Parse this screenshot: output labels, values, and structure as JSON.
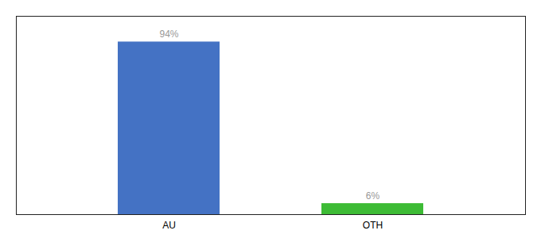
{
  "chart_data": {
    "type": "bar",
    "categories": [
      "AU",
      "OTH"
    ],
    "values": [
      94,
      6
    ],
    "value_labels": [
      "94%",
      "6%"
    ],
    "colors": [
      "#4472c4",
      "#3dbb35"
    ],
    "ylim": [
      0,
      108
    ],
    "tick_labels": "x",
    "data_labels": true
  }
}
